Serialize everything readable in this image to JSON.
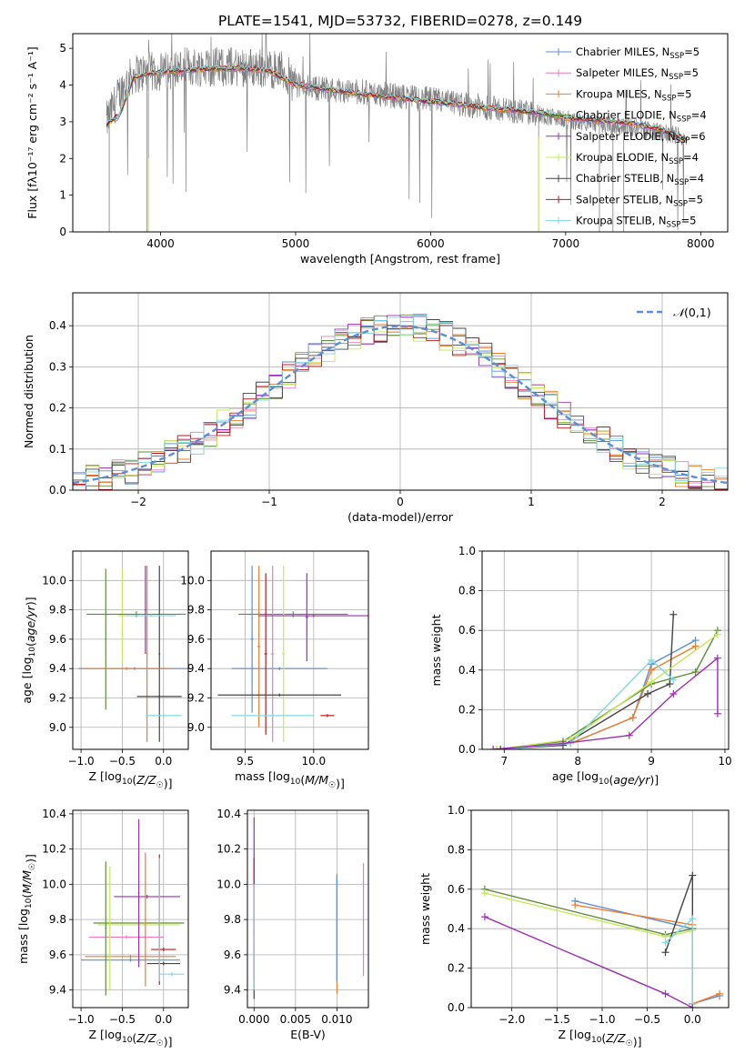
{
  "figure_title": "PLATE=1541, MJD=53732, FIBERID=0278, z=0.149",
  "colors": {
    "chabrier_miles": "#5b8ed6",
    "salpeter_miles": "#e67dbf",
    "kroupa_miles": "#ee7d2b",
    "chabrier_elodie": "#5d8f3a",
    "salpeter_elodie": "#9b30b5",
    "kroupa_elodie": "#c7e85a",
    "chabrier_stelib": "#444444",
    "salpeter_stelib": "#c01818",
    "kroupa_stelib": "#80d8e0",
    "spectrum": "#808080",
    "gaussian": "#5b8ed6"
  },
  "chart_data": [
    {
      "id": "spectrum",
      "type": "line",
      "title": "PLATE=1541, MJD=53732, FIBERID=0278, z=0.149",
      "xlabel": "wavelength [Angstrom, rest frame]",
      "ylabel": "Flux [fλ10⁻¹⁷ erg cm⁻² s⁻¹ A⁻¹]",
      "xlim": [
        3350,
        8200
      ],
      "ylim": [
        0,
        5.4
      ],
      "xticks": [
        4000,
        5000,
        6000,
        7000,
        8000
      ],
      "yticks": [
        0,
        1,
        2,
        3,
        4,
        5
      ],
      "spectrum_anchors": [
        [
          3600,
          3.0
        ],
        [
          3700,
          3.8
        ],
        [
          3800,
          4.3
        ],
        [
          3900,
          4.35
        ],
        [
          4000,
          4.35
        ],
        [
          4200,
          4.5
        ],
        [
          4400,
          4.5
        ],
        [
          4600,
          4.5
        ],
        [
          4800,
          4.45
        ],
        [
          4900,
          4.4
        ],
        [
          5000,
          4.0
        ],
        [
          5200,
          3.9
        ],
        [
          5500,
          3.8
        ],
        [
          6000,
          3.6
        ],
        [
          6500,
          3.35
        ],
        [
          6800,
          3.2
        ],
        [
          7000,
          3.05
        ],
        [
          7200,
          2.95
        ],
        [
          7500,
          2.85
        ],
        [
          7700,
          2.7
        ],
        [
          7800,
          2.65
        ],
        [
          7900,
          2.5
        ]
      ],
      "model_anchors": [
        [
          3600,
          2.9
        ],
        [
          3700,
          3.2
        ],
        [
          3800,
          4.2
        ],
        [
          3900,
          4.3
        ],
        [
          4000,
          4.35
        ],
        [
          4200,
          4.4
        ],
        [
          4400,
          4.45
        ],
        [
          4600,
          4.45
        ],
        [
          4800,
          4.4
        ],
        [
          5000,
          4.0
        ],
        [
          5200,
          3.9
        ],
        [
          5500,
          3.75
        ],
        [
          6000,
          3.55
        ],
        [
          6500,
          3.35
        ],
        [
          6800,
          3.25
        ],
        [
          7000,
          3.1
        ],
        [
          7200,
          3.05
        ],
        [
          7500,
          2.95
        ],
        [
          7700,
          2.8
        ],
        [
          7900,
          2.5
        ]
      ],
      "legend_position": "upper right",
      "legend": [
        {
          "label": "Chabrier MILES, N",
          "sub": "SSP",
          "suffix": "=5",
          "color": "#5b8ed6"
        },
        {
          "label": "Salpeter MILES, N",
          "sub": "SSP",
          "suffix": "=5",
          "color": "#e67dbf"
        },
        {
          "label": "Kroupa MILES, N",
          "sub": "SSP",
          "suffix": "=5",
          "color": "#ee7d2b"
        },
        {
          "label": "Chabrier ELODIE, N",
          "sub": "SSP",
          "suffix": "=4",
          "color": "#5d8f3a"
        },
        {
          "label": "Salpeter ELODIE, N",
          "sub": "SSP",
          "suffix": "=6",
          "color": "#9b30b5"
        },
        {
          "label": "Kroupa ELODIE, N",
          "sub": "SSP",
          "suffix": "=4",
          "color": "#c7e85a"
        },
        {
          "label": "Chabrier STELIB, N",
          "sub": "SSP",
          "suffix": "=4",
          "color": "#444444"
        },
        {
          "label": "Salpeter STELIB, N",
          "sub": "SSP",
          "suffix": "=5",
          "color": "#c01818"
        },
        {
          "label": "Kroupa STELIB, N",
          "sub": "SSP",
          "suffix": "=5",
          "color": "#80d8e0"
        }
      ]
    },
    {
      "id": "residual_hist",
      "type": "line",
      "xlabel": "(data-model)/error",
      "ylabel": "Normed distribution",
      "xlim": [
        -2.5,
        2.5
      ],
      "ylim": [
        0,
        0.48
      ],
      "xticks": [
        -2,
        -1,
        0,
        1,
        2
      ],
      "yticks": [
        0.0,
        0.1,
        0.2,
        0.3,
        0.4
      ],
      "grid": true,
      "bin_width": 0.1,
      "legend": [
        {
          "label": "𝒩(0,1)",
          "color": "#5b8ed6",
          "dashed": true
        }
      ],
      "legend_position": "upper right"
    },
    {
      "id": "age_vs_Z",
      "type": "scatter",
      "xlabel": "Z [log10(Z/Z☉)]",
      "ylabel": "age  [log10(age/yr)]",
      "xlim": [
        -1.1,
        0.3
      ],
      "ylim": [
        8.85,
        10.2
      ],
      "xticks": [
        -1.0,
        -0.5,
        0.0
      ],
      "yticks": [
        9.0,
        9.2,
        9.4,
        9.6,
        9.8,
        10.0
      ],
      "grid": true,
      "crosses": [
        {
          "x": -0.35,
          "xerr": 0.68,
          "y": 9.4,
          "yerr": 0.01,
          "color": "#5b8ed6"
        },
        {
          "x": -0.5,
          "xerr": 0.05,
          "y": 9.76,
          "yerr": 0.32,
          "color": "#c7e85a"
        },
        {
          "x": -0.33,
          "xerr": 0.6,
          "y": 9.77,
          "yerr": 0.02,
          "color": "#5d8f3a"
        },
        {
          "x": -0.7,
          "xerr": 0.01,
          "y": 9.6,
          "yerr": 0.48,
          "color": "#5d8f3a"
        },
        {
          "x": -0.22,
          "xerr": 0.01,
          "y": 9.8,
          "yerr": 0.3,
          "color": "#9b30b5"
        },
        {
          "x": -0.2,
          "xerr": 0.01,
          "y": 9.5,
          "yerr": 0.6,
          "color": "#ee7d2b"
        },
        {
          "x": -0.05,
          "xerr": 0.01,
          "y": 9.5,
          "yerr": 0.6,
          "color": "#444444"
        },
        {
          "x": -0.05,
          "xerr": 0.27,
          "y": 9.21,
          "yerr": 0.01,
          "color": "#444444"
        },
        {
          "x": 0.0,
          "xerr": 0.22,
          "y": 9.08,
          "yerr": 0.01,
          "color": "#80d8e0"
        },
        {
          "x": -0.45,
          "xerr": 0.55,
          "y": 9.4,
          "yerr": 0.01,
          "color": "#ee7d2b"
        },
        {
          "x": -0.15,
          "xerr": 0.3,
          "y": 9.76,
          "yerr": 0.01,
          "color": "#80d8e0"
        }
      ]
    },
    {
      "id": "age_vs_mass",
      "type": "scatter",
      "xlabel": "mass [log10(M/M☉)]",
      "ylabel": "",
      "xlim": [
        9.25,
        10.4
      ],
      "ylim": [
        8.85,
        10.2
      ],
      "xticks": [
        9.5,
        10.0
      ],
      "yticks": [
        9.0,
        9.2,
        9.4,
        9.6,
        9.8,
        10.0
      ],
      "grid": true,
      "crosses": [
        {
          "x": 9.75,
          "xerr": 0.35,
          "y": 9.4,
          "yerr": 0.01,
          "color": "#5b8ed6"
        },
        {
          "x": 9.85,
          "xerr": 0.4,
          "y": 9.77,
          "yerr": 0.02,
          "color": "#5d8f3a"
        },
        {
          "x": 9.55,
          "xerr": 0.01,
          "y": 9.6,
          "yerr": 0.5,
          "color": "#5b8ed6"
        },
        {
          "x": 9.6,
          "xerr": 0.01,
          "y": 9.55,
          "yerr": 0.55,
          "color": "#ee7d2b"
        },
        {
          "x": 9.65,
          "xerr": 0.01,
          "y": 9.5,
          "yerr": 0.55,
          "color": "#c01818"
        },
        {
          "x": 9.7,
          "xerr": 0.01,
          "y": 9.5,
          "yerr": 0.6,
          "color": "#e67dbf"
        },
        {
          "x": 9.78,
          "xerr": 0.01,
          "y": 9.5,
          "yerr": 0.6,
          "color": "#c7e85a"
        },
        {
          "x": 9.95,
          "xerr": 0.01,
          "y": 9.75,
          "yerr": 0.3,
          "color": "#9b30b5"
        },
        {
          "x": 10.0,
          "xerr": 0.4,
          "y": 9.76,
          "yerr": 0.01,
          "color": "#9b30b5"
        },
        {
          "x": 9.75,
          "xerr": 0.45,
          "y": 9.22,
          "yerr": 0.01,
          "color": "#444444"
        },
        {
          "x": 9.7,
          "xerr": 0.3,
          "y": 9.08,
          "yerr": 0.01,
          "color": "#80d8e0"
        },
        {
          "x": 10.1,
          "xerr": 0.05,
          "y": 9.08,
          "yerr": 0.01,
          "color": "#c01818"
        }
      ]
    },
    {
      "id": "mw_vs_age",
      "type": "line",
      "xlabel": "age  [log10(age/yr)]",
      "ylabel": "mass weight",
      "xlim": [
        6.7,
        10.05
      ],
      "ylim": [
        0,
        1.0
      ],
      "xticks": [
        7,
        8,
        9,
        10
      ],
      "yticks": [
        0.0,
        0.2,
        0.4,
        0.6,
        0.8,
        1.0
      ],
      "grid": true,
      "series": [
        {
          "color": "#5b8ed6",
          "points": [
            [
              7.0,
              0.0
            ],
            [
              7.9,
              0.03
            ],
            [
              8.75,
              0.16
            ],
            [
              9.0,
              0.43
            ],
            [
              9.6,
              0.55
            ]
          ]
        },
        {
          "color": "#ee7d2b",
          "points": [
            [
              7.0,
              0.0
            ],
            [
              7.9,
              0.03
            ],
            [
              8.75,
              0.16
            ],
            [
              9.0,
              0.4
            ],
            [
              9.6,
              0.52
            ]
          ]
        },
        {
          "color": "#444444",
          "points": [
            [
              6.95,
              0.0
            ],
            [
              7.8,
              0.02
            ],
            [
              8.95,
              0.28
            ],
            [
              9.25,
              0.33
            ],
            [
              9.3,
              0.68
            ]
          ]
        },
        {
          "color": "#5d8f3a",
          "points": [
            [
              6.9,
              0.0
            ],
            [
              7.8,
              0.04
            ],
            [
              9.0,
              0.33
            ],
            [
              9.6,
              0.39
            ],
            [
              9.9,
              0.6
            ]
          ]
        },
        {
          "color": "#c7e85a",
          "points": [
            [
              6.9,
              0.0
            ],
            [
              7.9,
              0.05
            ],
            [
              9.0,
              0.34
            ],
            [
              9.9,
              0.58
            ]
          ]
        },
        {
          "color": "#80d8e0",
          "points": [
            [
              7.0,
              0.0
            ],
            [
              7.9,
              0.03
            ],
            [
              9.0,
              0.45
            ],
            [
              9.3,
              0.35
            ]
          ]
        },
        {
          "color": "#9b30b5",
          "points": [
            [
              6.85,
              0.0
            ],
            [
              7.8,
              0.03
            ],
            [
              8.7,
              0.07
            ],
            [
              9.3,
              0.28
            ],
            [
              9.9,
              0.46
            ],
            [
              9.9,
              0.18
            ]
          ]
        }
      ]
    },
    {
      "id": "mass_vs_Z",
      "type": "scatter",
      "xlabel": "Z [log10(Z/Z☉)]",
      "ylabel": "mass [log10(M/M☉)]",
      "xlim": [
        -1.1,
        0.3
      ],
      "ylim": [
        9.3,
        10.42
      ],
      "xticks": [
        -1.0,
        -0.5,
        0.0
      ],
      "yticks": [
        9.4,
        9.6,
        9.8,
        10.0,
        10.2,
        10.4
      ],
      "grid": true,
      "crosses": [
        {
          "x": -0.4,
          "xerr": 0.6,
          "y": 9.57,
          "yerr": 0.01,
          "color": "#5b8ed6"
        },
        {
          "x": -0.4,
          "xerr": 0.55,
          "y": 9.59,
          "yerr": 0.01,
          "color": "#ee7d2b"
        },
        {
          "x": -0.45,
          "xerr": 0.45,
          "y": 9.7,
          "yerr": 0.01,
          "color": "#e67dbf"
        },
        {
          "x": -0.3,
          "xerr": 0.55,
          "y": 9.78,
          "yerr": 0.01,
          "color": "#5d8f3a"
        },
        {
          "x": -0.3,
          "xerr": 0.5,
          "y": 9.77,
          "yerr": 0.01,
          "color": "#c7e85a"
        },
        {
          "x": -0.2,
          "xerr": 0.4,
          "y": 9.93,
          "yerr": 0.01,
          "color": "#9b30b5"
        },
        {
          "x": 0.0,
          "xerr": 0.2,
          "y": 9.55,
          "yerr": 0.01,
          "color": "#444444"
        },
        {
          "x": 0.0,
          "xerr": 0.15,
          "y": 9.63,
          "yerr": 0.01,
          "color": "#c01818"
        },
        {
          "x": 0.1,
          "xerr": 0.15,
          "y": 9.49,
          "yerr": 0.01,
          "color": "#80d8e0"
        },
        {
          "x": -0.7,
          "xerr": 0.01,
          "y": 9.75,
          "yerr": 0.38,
          "color": "#5d8f3a"
        },
        {
          "x": -0.65,
          "xerr": 0.01,
          "y": 9.75,
          "yerr": 0.35,
          "color": "#c7e85a"
        },
        {
          "x": -0.3,
          "xerr": 0.01,
          "y": 9.95,
          "yerr": 0.42,
          "color": "#9b30b5"
        },
        {
          "x": -0.22,
          "xerr": 0.01,
          "y": 9.8,
          "yerr": 0.38,
          "color": "#ee7d2b"
        },
        {
          "x": -0.05,
          "xerr": 0.01,
          "y": 9.8,
          "yerr": 0.37,
          "color": "#c01818"
        },
        {
          "x": -0.05,
          "xerr": 0.01,
          "y": 9.8,
          "yerr": 0.35,
          "color": "#80d8e0"
        }
      ]
    },
    {
      "id": "mass_vs_ebv",
      "type": "scatter",
      "xlabel": "E(B-V)",
      "ylabel": "",
      "xlim": [
        -0.0008,
        0.0138
      ],
      "ylim": [
        9.3,
        10.42
      ],
      "xticks": [
        0.0,
        0.005,
        0.01
      ],
      "yticks": [
        9.4,
        9.6,
        9.8,
        10.0,
        10.2,
        10.4
      ],
      "grid": true,
      "crosses": [
        {
          "x": 0.0,
          "xerr": 5e-05,
          "y": 9.75,
          "yerr": 0.4,
          "color": "#444444"
        },
        {
          "x": 0.0,
          "xerr": 5e-05,
          "y": 9.8,
          "yerr": 0.35,
          "color": "#c01818"
        },
        {
          "x": 0.0,
          "xerr": 5e-05,
          "y": 10.0,
          "yerr": 0.38,
          "color": "#9b30b5"
        },
        {
          "x": 0.0,
          "xerr": 5e-05,
          "y": 9.7,
          "yerr": 0.3,
          "color": "#80d8e0"
        },
        {
          "x": 0.01,
          "xerr": 5e-05,
          "y": 9.72,
          "yerr": 0.34,
          "color": "#ee7d2b"
        },
        {
          "x": 0.01,
          "xerr": 5e-05,
          "y": 9.75,
          "yerr": 0.3,
          "color": "#5b8ed6"
        },
        {
          "x": 0.0132,
          "xerr": 5e-05,
          "y": 9.8,
          "yerr": 0.32,
          "color": "#e67dbf"
        }
      ]
    },
    {
      "id": "mw_vs_Z",
      "type": "line",
      "xlabel": "Z [log10(Z/Z☉)]",
      "ylabel": "mass weight",
      "xlim": [
        -2.45,
        0.4
      ],
      "ylim": [
        0,
        1.0
      ],
      "xticks": [
        -2.0,
        -1.5,
        -1.0,
        -0.5,
        0.0
      ],
      "yticks": [
        0.0,
        0.2,
        0.4,
        0.6,
        0.8,
        1.0
      ],
      "grid": true,
      "series": [
        {
          "color": "#5b8ed6",
          "points": [
            [
              -1.3,
              0.54
            ],
            [
              0.0,
              0.4
            ],
            [
              0.0,
              0.02
            ],
            [
              0.3,
              0.06
            ]
          ]
        },
        {
          "color": "#ee7d2b",
          "points": [
            [
              -1.3,
              0.52
            ],
            [
              0.0,
              0.42
            ],
            [
              0.0,
              0.02
            ],
            [
              0.3,
              0.07
            ]
          ]
        },
        {
          "color": "#5d8f3a",
          "points": [
            [
              -2.3,
              0.6
            ],
            [
              -0.3,
              0.37
            ],
            [
              0.0,
              0.4
            ],
            [
              0.0,
              0.02
            ]
          ]
        },
        {
          "color": "#c7e85a",
          "points": [
            [
              -2.3,
              0.58
            ],
            [
              -0.3,
              0.36
            ],
            [
              0.0,
              0.39
            ],
            [
              0.0,
              0.02
            ]
          ]
        },
        {
          "color": "#444444",
          "points": [
            [
              -0.3,
              0.28
            ],
            [
              0.0,
              0.67
            ],
            [
              0.0,
              0.02
            ]
          ]
        },
        {
          "color": "#80d8e0",
          "points": [
            [
              -0.3,
              0.33
            ],
            [
              0.0,
              0.45
            ],
            [
              0.0,
              0.02
            ]
          ]
        },
        {
          "color": "#9b30b5",
          "points": [
            [
              -2.3,
              0.46
            ],
            [
              -0.3,
              0.07
            ],
            [
              0.0,
              0.0
            ]
          ]
        }
      ]
    }
  ]
}
